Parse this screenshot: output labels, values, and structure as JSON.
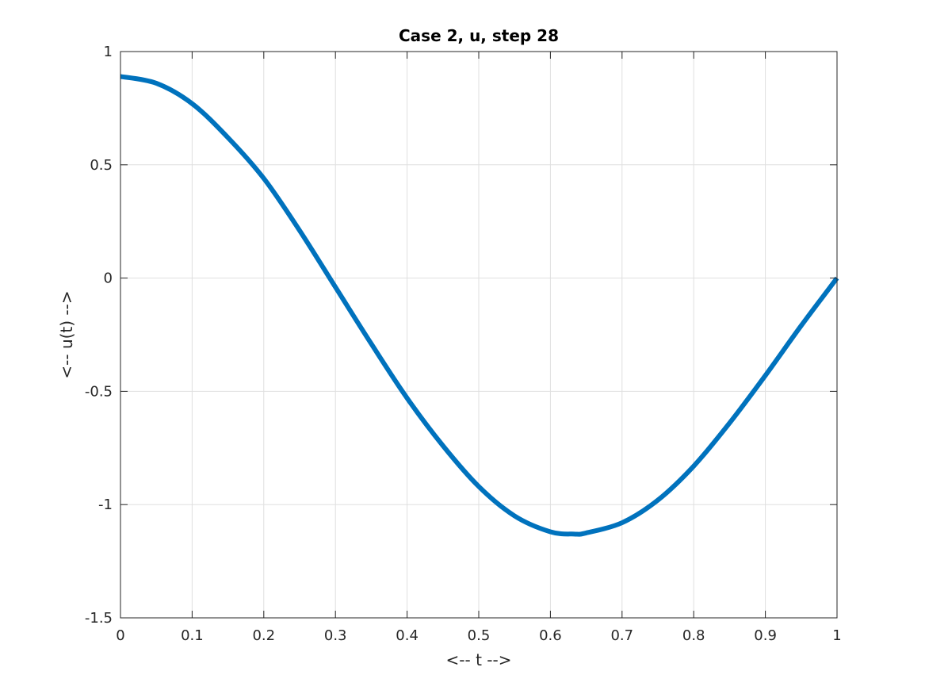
{
  "chart_data": {
    "type": "line",
    "title": "Case 2, u, step 28",
    "xlabel": "<-- t -->",
    "ylabel": "<-- u(t) -->",
    "xlim": [
      0,
      1
    ],
    "ylim": [
      -1.5,
      1
    ],
    "xticks": [
      0,
      0.1,
      0.2,
      0.3,
      0.4,
      0.5,
      0.6,
      0.7,
      0.8,
      0.9,
      1
    ],
    "xtick_labels": [
      "0",
      "0.1",
      "0.2",
      "0.3",
      "0.4",
      "0.5",
      "0.6",
      "0.7",
      "0.8",
      "0.9",
      "1"
    ],
    "yticks": [
      -1.5,
      -1,
      -0.5,
      0,
      0.5,
      1
    ],
    "ytick_labels": [
      "-1.5",
      "-1",
      "-0.5",
      "0",
      "0.5",
      "1"
    ],
    "grid": true,
    "series": [
      {
        "color": "#0072bd",
        "x": [
          0,
          0.05,
          0.1,
          0.15,
          0.2,
          0.25,
          0.3,
          0.35,
          0.4,
          0.45,
          0.5,
          0.55,
          0.6,
          0.633,
          0.65,
          0.7,
          0.75,
          0.8,
          0.85,
          0.9,
          0.95,
          1
        ],
        "y": [
          0.89,
          0.86,
          0.77,
          0.62,
          0.44,
          0.21,
          -0.04,
          -0.29,
          -0.53,
          -0.74,
          -0.92,
          -1.05,
          -1.12,
          -1.13,
          -1.125,
          -1.08,
          -0.98,
          -0.83,
          -0.64,
          -0.43,
          -0.21,
          0.0
        ]
      }
    ]
  }
}
